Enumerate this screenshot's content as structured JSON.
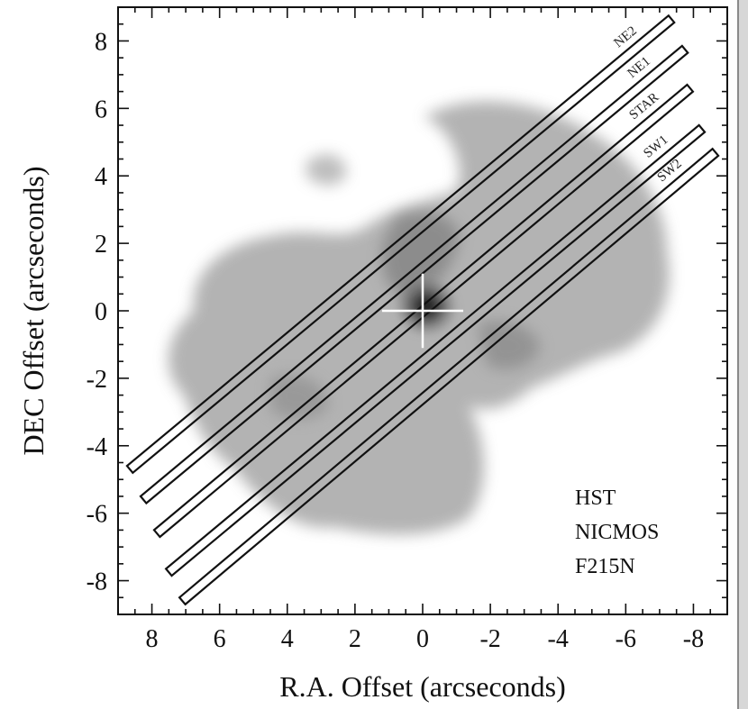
{
  "chart_data": {
    "type": "image",
    "xlabel": "R.A. Offset (arcseconds)",
    "ylabel": "DEC Offset (arcseconds)",
    "xlim": [
      9,
      -9
    ],
    "ylim": [
      -9,
      9
    ],
    "x_ticks": [
      8,
      6,
      4,
      2,
      0,
      -2,
      -4,
      -6,
      -8
    ],
    "y_ticks": [
      8,
      6,
      4,
      2,
      0,
      -2,
      -4,
      -6,
      -8
    ],
    "x_tick_labels": [
      "8",
      "6",
      "4",
      "2",
      "0",
      "-2",
      "-4",
      "-6",
      "-8"
    ],
    "y_tick_labels": [
      "8",
      "6",
      "4",
      "2",
      "0",
      "-2",
      "-4",
      "-6",
      "-8"
    ],
    "annotation": [
      "HST",
      "NICMOS",
      "F215N"
    ],
    "star": {
      "x": 0,
      "y": 0,
      "cross_halfwidth": 1.2,
      "cross_halfheight": 1.1
    },
    "slits": [
      {
        "name": "NE2",
        "start": [
          8.65,
          -4.7
        ],
        "end": [
          -7.35,
          8.65
        ]
      },
      {
        "name": "NE1",
        "start": [
          8.25,
          -5.6
        ],
        "end": [
          -7.75,
          7.75
        ]
      },
      {
        "name": "STAR",
        "start": [
          7.85,
          -6.6
        ],
        "end": [
          -7.9,
          6.6
        ]
      },
      {
        "name": "SW1",
        "start": [
          7.5,
          -7.75
        ],
        "end": [
          -8.25,
          5.4
        ]
      },
      {
        "name": "SW2",
        "start": [
          7.1,
          -8.6
        ],
        "end": [
          -8.65,
          4.7
        ]
      }
    ],
    "grid": false,
    "colors": {
      "frame": "#111111",
      "nebula": "#9a9a9a",
      "core": "#1a1a1a",
      "cross": "#ffffff"
    }
  }
}
